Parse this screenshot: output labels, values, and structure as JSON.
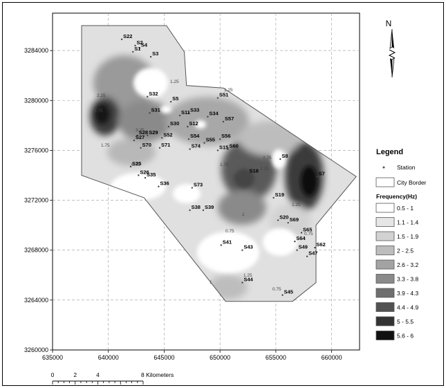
{
  "x_axis": {
    "ticks": [
      "635000",
      "640000",
      "645000",
      "650000",
      "655000",
      "660000"
    ],
    "values": [
      635000,
      640000,
      645000,
      650000,
      655000,
      660000
    ],
    "range": [
      635000,
      662500
    ]
  },
  "y_axis": {
    "ticks": [
      "3284000",
      "3280000",
      "3276000",
      "3272000",
      "3268000",
      "3264000",
      "3260000"
    ],
    "values": [
      3284000,
      3280000,
      3276000,
      3272000,
      3268000,
      3264000,
      3260000
    ],
    "range": [
      3260000,
      3287000
    ]
  },
  "north_arrow": {
    "label": "N",
    "icon": "north-arrow-icon"
  },
  "scale_bar": {
    "labels": [
      "0",
      "2",
      "4",
      "8 Kilometers"
    ],
    "km": [
      0,
      2,
      4,
      8
    ]
  },
  "legend": {
    "title": "Legend",
    "station_label": "Station",
    "border_label": "City Border",
    "frequency_title": "Frequency(Hz)",
    "classes": [
      {
        "label": "0.5 - 1",
        "color": "#ffffff"
      },
      {
        "label": "1.1 - 1.4",
        "color": "#e6e6e6"
      },
      {
        "label": "1.5 - 1.9",
        "color": "#d2d2d2"
      },
      {
        "label": "2 - 2.5",
        "color": "#bdbdbd"
      },
      {
        "label": "2.6 - 3.2",
        "color": "#a3a3a3"
      },
      {
        "label": "3.3 - 3.8",
        "color": "#8a8a8a"
      },
      {
        "label": "3.9 - 4.3",
        "color": "#6e6e6e"
      },
      {
        "label": "4.4 - 4.9",
        "color": "#525252"
      },
      {
        "label": "5 - 5.5",
        "color": "#333333"
      },
      {
        "label": "5.6 - 6",
        "color": "#111111"
      }
    ]
  },
  "city_border": [
    [
      637600,
      3286000
    ],
    [
      645200,
      3286000
    ],
    [
      646800,
      3283900
    ],
    [
      647000,
      3281200
    ],
    [
      650300,
      3281000
    ],
    [
      662200,
      3273900
    ],
    [
      658600,
      3270000
    ],
    [
      658600,
      3265400
    ],
    [
      656500,
      3263900
    ],
    [
      650500,
      3263900
    ],
    [
      643200,
      3272200
    ],
    [
      637600,
      3274000
    ]
  ],
  "stations": [
    {
      "name": "S22",
      "x": 641200,
      "y": 3284900
    },
    {
      "name": "S2",
      "x": 642400,
      "y": 3284400
    },
    {
      "name": "S4",
      "x": 642800,
      "y": 3284200
    },
    {
      "name": "S1",
      "x": 642200,
      "y": 3283900
    },
    {
      "name": "S3",
      "x": 643800,
      "y": 3283500
    },
    {
      "name": "S32",
      "x": 643500,
      "y": 3280300
    },
    {
      "name": "S5",
      "x": 645600,
      "y": 3279900
    },
    {
      "name": "S51",
      "x": 649800,
      "y": 3280200
    },
    {
      "name": "S33",
      "x": 647200,
      "y": 3279000
    },
    {
      "name": "S31",
      "x": 643700,
      "y": 3279000
    },
    {
      "name": "S11",
      "x": 646400,
      "y": 3278800
    },
    {
      "name": "S34",
      "x": 648900,
      "y": 3278700
    },
    {
      "name": "S57",
      "x": 650300,
      "y": 3278300
    },
    {
      "name": "S30",
      "x": 645400,
      "y": 3277900
    },
    {
      "name": "S12",
      "x": 647100,
      "y": 3277900
    },
    {
      "name": "S28",
      "x": 642600,
      "y": 3277200
    },
    {
      "name": "S29",
      "x": 643500,
      "y": 3277200
    },
    {
      "name": "S52",
      "x": 644800,
      "y": 3277000
    },
    {
      "name": "S27",
      "x": 642300,
      "y": 3276800
    },
    {
      "name": "S54",
      "x": 647200,
      "y": 3276900
    },
    {
      "name": "S56",
      "x": 650000,
      "y": 3276900
    },
    {
      "name": "S55",
      "x": 648600,
      "y": 3276600
    },
    {
      "name": "S70",
      "x": 642900,
      "y": 3276200
    },
    {
      "name": "S71",
      "x": 644600,
      "y": 3276200
    },
    {
      "name": "S74",
      "x": 647300,
      "y": 3276100
    },
    {
      "name": "S15",
      "x": 649800,
      "y": 3276000
    },
    {
      "name": "S60",
      "x": 650700,
      "y": 3276100
    },
    {
      "name": "S8",
      "x": 655400,
      "y": 3275300
    },
    {
      "name": "S25",
      "x": 642000,
      "y": 3274700
    },
    {
      "name": "S26",
      "x": 642700,
      "y": 3274000
    },
    {
      "name": "S35",
      "x": 643300,
      "y": 3273800
    },
    {
      "name": "S18",
      "x": 652500,
      "y": 3274100
    },
    {
      "name": "S7",
      "x": 658700,
      "y": 3273900
    },
    {
      "name": "S36",
      "x": 644500,
      "y": 3273100
    },
    {
      "name": "S73",
      "x": 647500,
      "y": 3273000
    },
    {
      "name": "S19",
      "x": 654800,
      "y": 3272200
    },
    {
      "name": "S38",
      "x": 647300,
      "y": 3271200
    },
    {
      "name": "S39",
      "x": 648500,
      "y": 3271200
    },
    {
      "name": "S20",
      "x": 655200,
      "y": 3270400
    },
    {
      "name": "S69",
      "x": 656100,
      "y": 3270200
    },
    {
      "name": "S65",
      "x": 657300,
      "y": 3269400
    },
    {
      "name": "S64",
      "x": 656700,
      "y": 3268700
    },
    {
      "name": "S41",
      "x": 650100,
      "y": 3268400
    },
    {
      "name": "S43",
      "x": 652000,
      "y": 3268000
    },
    {
      "name": "S49",
      "x": 656900,
      "y": 3268000
    },
    {
      "name": "S62",
      "x": 658500,
      "y": 3268200
    },
    {
      "name": "S47",
      "x": 657800,
      "y": 3267500
    },
    {
      "name": "S44",
      "x": 652000,
      "y": 3265400
    },
    {
      "name": "S45",
      "x": 655600,
      "y": 3264400
    }
  ],
  "contour_labels": [
    "1.25",
    "1.25",
    "2.25",
    "2.75",
    "4.75",
    "3.25",
    "1.75",
    "0.75",
    "0.75",
    "1",
    "1",
    "1.25",
    "0.75",
    "2.25",
    "2.75",
    "1.75",
    "0.75",
    "1.25"
  ]
}
